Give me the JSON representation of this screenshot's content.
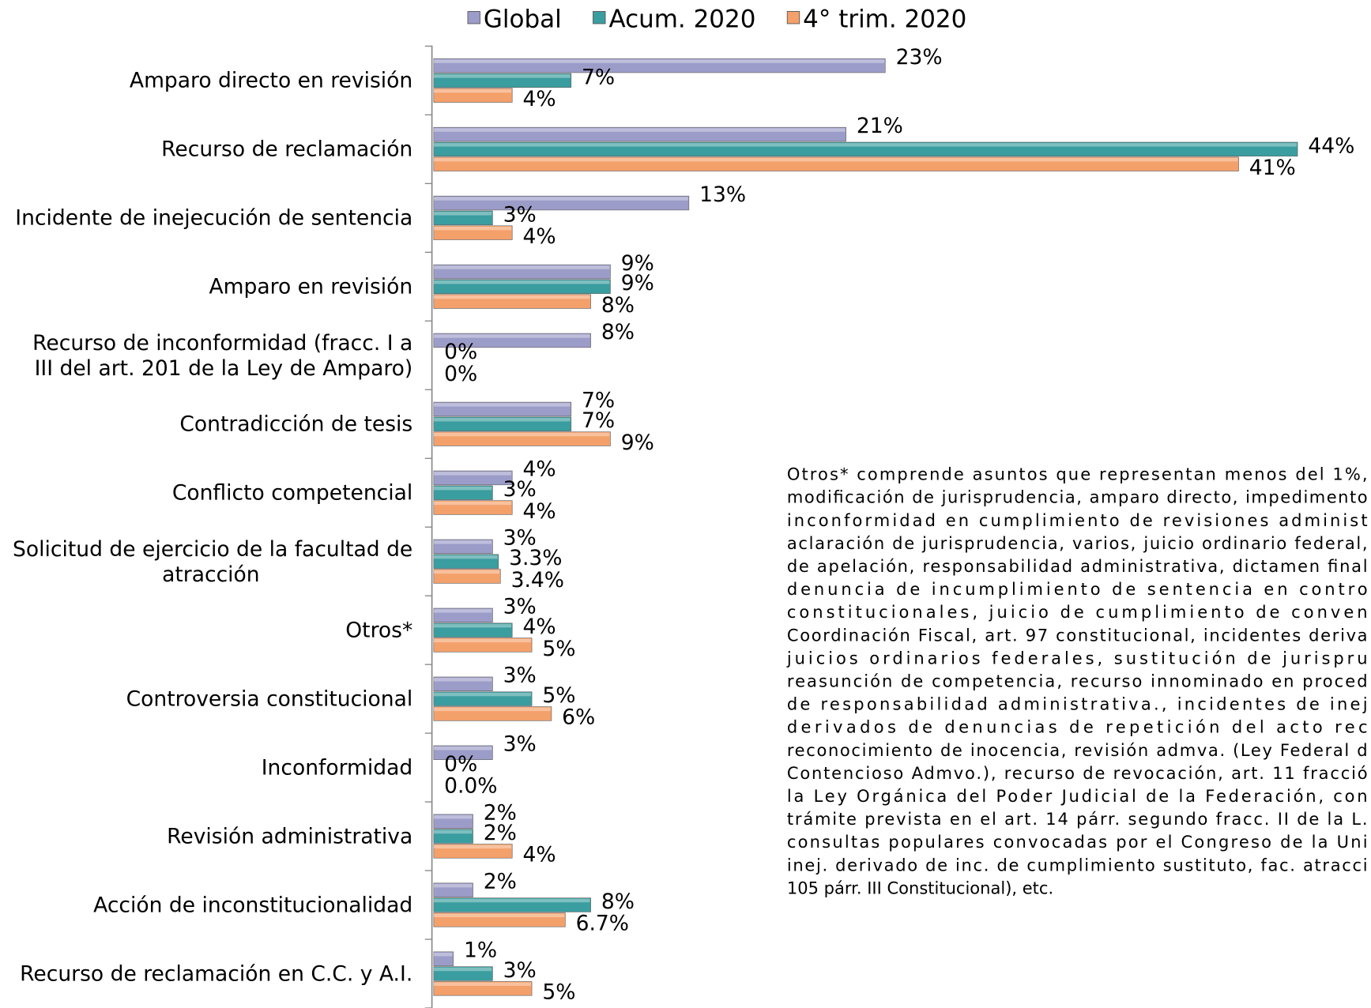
{
  "chart_data": {
    "type": "bar",
    "orientation": "horizontal",
    "categories": [
      "Amparo directo en revisión",
      "Recurso de reclamación",
      "Incidente de inejecución de sentencia",
      "Amparo en revisión",
      "Recurso de inconformidad (fracc. I a\nIII del art. 201 de la Ley de Amparo)",
      "Contradicción de tesis",
      "Conflicto competencial",
      "Solicitud de ejercicio de la facultad de\natracción",
      "Otros*",
      "Controversia constitucional",
      "Inconformidad",
      "Revisión administrativa",
      "Acción de inconstitucionalidad",
      "Recurso de reclamación en C.C. y A.I."
    ],
    "series": [
      {
        "name": "Global",
        "color": "#9c9cc9",
        "values": [
          23,
          21,
          13,
          9,
          8,
          7,
          4,
          3,
          3,
          3,
          3,
          2,
          2,
          1
        ],
        "value_labels": [
          "23%",
          "21%",
          "13%",
          "9%",
          "8%",
          "7%",
          "4%",
          "3%",
          "3%",
          "3%",
          "3%",
          "2%",
          "2%",
          "1%"
        ]
      },
      {
        "name": "Acum. 2020",
        "color": "#3a9d9f",
        "values": [
          7,
          44,
          3,
          9,
          0,
          7,
          3,
          3.3,
          4,
          5,
          0,
          2,
          8,
          3
        ],
        "value_labels": [
          "7%",
          "44%",
          "3%",
          "9%",
          "0%",
          "7%",
          "3%",
          "3.3%",
          "4%",
          "5%",
          "0%",
          "2%",
          "8%",
          "3%"
        ]
      },
      {
        "name": "4° trim. 2020",
        "color": "#f4a06a",
        "values": [
          4,
          41,
          4,
          8,
          0,
          9,
          4,
          3.4,
          5,
          6,
          0,
          4,
          6.7,
          5
        ],
        "value_labels": [
          "4%",
          "41%",
          "4%",
          "8%",
          "0%",
          "9%",
          "4%",
          "3.4%",
          "5%",
          "6%",
          "0.0%",
          "4%",
          "6.7%",
          "5%"
        ]
      }
    ],
    "legend": "top",
    "annotation": [
      "Otros* comprende asuntos que representan menos del 1%,",
      "modificación de jurisprudencia, amparo directo, impedimento",
      "inconformidad en cumplimiento de revisiones administ",
      "aclaración de jurisprudencia, varios, juicio ordinario federal,",
      "de apelación, responsabilidad administrativa, dictamen final",
      "denuncia de incumplimiento de sentencia en contro",
      "constitucionales, juicio de cumplimiento de conven",
      "Coordinación Fiscal, art. 97 constitucional, incidentes deriva",
      "juicios ordinarios federales, sustitución de jurispru",
      "reasunción de competencia, recurso innominado en proced",
      "de responsabilidad administrativa., incidentes de inej",
      "derivados de denuncias de repetición del acto rec",
      "reconocimiento de inocencia, revisión admva. (Ley Federal d",
      "Contencioso Admvo.), recurso de revocación, art. 11 fracció",
      "la Ley Orgánica del Poder Judicial de la Federación, con",
      "trámite prevista en el art. 14 párr. segundo fracc. II de la L.",
      "consultas populares convocadas por el Congreso de la Uni",
      "inej. derivado de inc. de cumplimiento sustituto, fac. atracci",
      "105 párr. III Constitucional), etc."
    ]
  }
}
